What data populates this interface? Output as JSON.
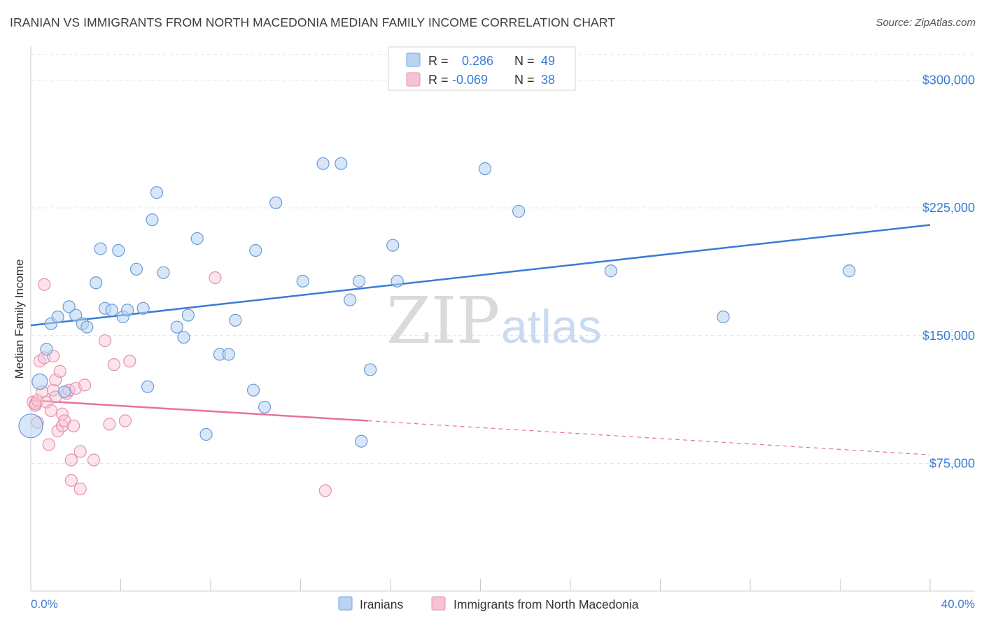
{
  "title": "IRANIAN VS IMMIGRANTS FROM NORTH MACEDONIA MEDIAN FAMILY INCOME CORRELATION CHART",
  "source": "Source: ZipAtlas.com",
  "watermark": {
    "zip": "ZIP",
    "atlas": "atlas"
  },
  "colors": {
    "blue": "#3a7bd5",
    "blue_fill": "#b8d3f3",
    "pink": "#e8729a",
    "pink_fill": "#f7c3d4"
  },
  "legend_top": [
    {
      "r_label": "R =",
      "r_value": "0.286",
      "n_label": "N =",
      "n_value": "49"
    },
    {
      "r_label": "R =",
      "r_value": "-0.069",
      "n_label": "N =",
      "n_value": "38"
    }
  ],
  "chart_data": {
    "type": "scatter",
    "title": "IRANIAN VS IMMIGRANTS FROM NORTH MACEDONIA MEDIAN FAMILY INCOME CORRELATION CHART",
    "xlabel": "",
    "ylabel": "Median Family Income",
    "xlim": [
      0,
      40
    ],
    "ylim": [
      0,
      315000
    ],
    "x_tick_labels": [
      "0.0%",
      "40.0%"
    ],
    "y_ticks": [
      75000,
      150000,
      225000,
      300000
    ],
    "y_tick_labels": [
      "$75,000",
      "$150,000",
      "$225,000",
      "$300,000"
    ],
    "grid": true,
    "legend_position": "bottom",
    "series": [
      {
        "name": "Iranians",
        "color": "#3a7bd5",
        "trend": {
          "x": [
            0,
            40
          ],
          "y": [
            156000,
            215000
          ]
        },
        "points": [
          [
            0.0,
            97000
          ],
          [
            0.4,
            123000
          ],
          [
            0.7,
            142000
          ],
          [
            0.9,
            157000
          ],
          [
            1.2,
            161000
          ],
          [
            1.5,
            117000
          ],
          [
            1.7,
            167000
          ],
          [
            2.0,
            162000
          ],
          [
            2.3,
            157000
          ],
          [
            2.5,
            155000
          ],
          [
            2.9,
            181000
          ],
          [
            3.1,
            201000
          ],
          [
            3.3,
            166000
          ],
          [
            3.6,
            165000
          ],
          [
            3.9,
            200000
          ],
          [
            4.1,
            161000
          ],
          [
            4.3,
            165000
          ],
          [
            4.7,
            189000
          ],
          [
            5.0,
            166000
          ],
          [
            5.2,
            120000
          ],
          [
            5.4,
            218000
          ],
          [
            5.6,
            234000
          ],
          [
            5.9,
            187000
          ],
          [
            6.5,
            155000
          ],
          [
            6.8,
            149000
          ],
          [
            7.0,
            162000
          ],
          [
            7.4,
            207000
          ],
          [
            7.8,
            92000
          ],
          [
            8.4,
            139000
          ],
          [
            8.8,
            139000
          ],
          [
            9.1,
            159000
          ],
          [
            9.9,
            118000
          ],
          [
            10.0,
            200000
          ],
          [
            10.4,
            108000
          ],
          [
            10.9,
            228000
          ],
          [
            12.1,
            182000
          ],
          [
            13.0,
            251000
          ],
          [
            13.8,
            251000
          ],
          [
            14.2,
            171000
          ],
          [
            14.6,
            182000
          ],
          [
            14.7,
            88000
          ],
          [
            15.1,
            130000
          ],
          [
            16.1,
            203000
          ],
          [
            16.3,
            182000
          ],
          [
            20.2,
            248000
          ],
          [
            21.7,
            223000
          ],
          [
            25.8,
            188000
          ],
          [
            30.8,
            161000
          ],
          [
            36.4,
            188000
          ]
        ]
      },
      {
        "name": "Immigrants from North Macedonia",
        "color": "#e8729a",
        "trend": {
          "x": [
            0,
            15
          ],
          "y": [
            112000,
            100000
          ],
          "dashed_to": {
            "x": 40,
            "y": 80000
          }
        },
        "points": [
          [
            0.1,
            111000
          ],
          [
            0.2,
            109000
          ],
          [
            0.2,
            110000
          ],
          [
            0.3,
            112000
          ],
          [
            0.3,
            99000
          ],
          [
            0.4,
            135000
          ],
          [
            0.5,
            117000
          ],
          [
            0.6,
            180000
          ],
          [
            0.6,
            137000
          ],
          [
            0.7,
            111000
          ],
          [
            0.8,
            86000
          ],
          [
            0.9,
            106000
          ],
          [
            1.0,
            118000
          ],
          [
            1.0,
            138000
          ],
          [
            1.1,
            114000
          ],
          [
            1.1,
            124000
          ],
          [
            1.2,
            94000
          ],
          [
            1.3,
            129000
          ],
          [
            1.4,
            97000
          ],
          [
            1.4,
            104000
          ],
          [
            1.5,
            100000
          ],
          [
            1.6,
            116000
          ],
          [
            1.7,
            118000
          ],
          [
            1.8,
            65000
          ],
          [
            1.8,
            77000
          ],
          [
            1.9,
            97000
          ],
          [
            2.0,
            119000
          ],
          [
            2.2,
            60000
          ],
          [
            2.2,
            82000
          ],
          [
            2.4,
            121000
          ],
          [
            2.8,
            77000
          ],
          [
            3.3,
            147000
          ],
          [
            3.5,
            98000
          ],
          [
            3.7,
            133000
          ],
          [
            4.2,
            100000
          ],
          [
            4.4,
            135000
          ],
          [
            8.2,
            184000
          ],
          [
            13.1,
            59000
          ]
        ]
      }
    ]
  },
  "legend_bottom": [
    "Iranians",
    "Immigrants from North Macedonia"
  ]
}
